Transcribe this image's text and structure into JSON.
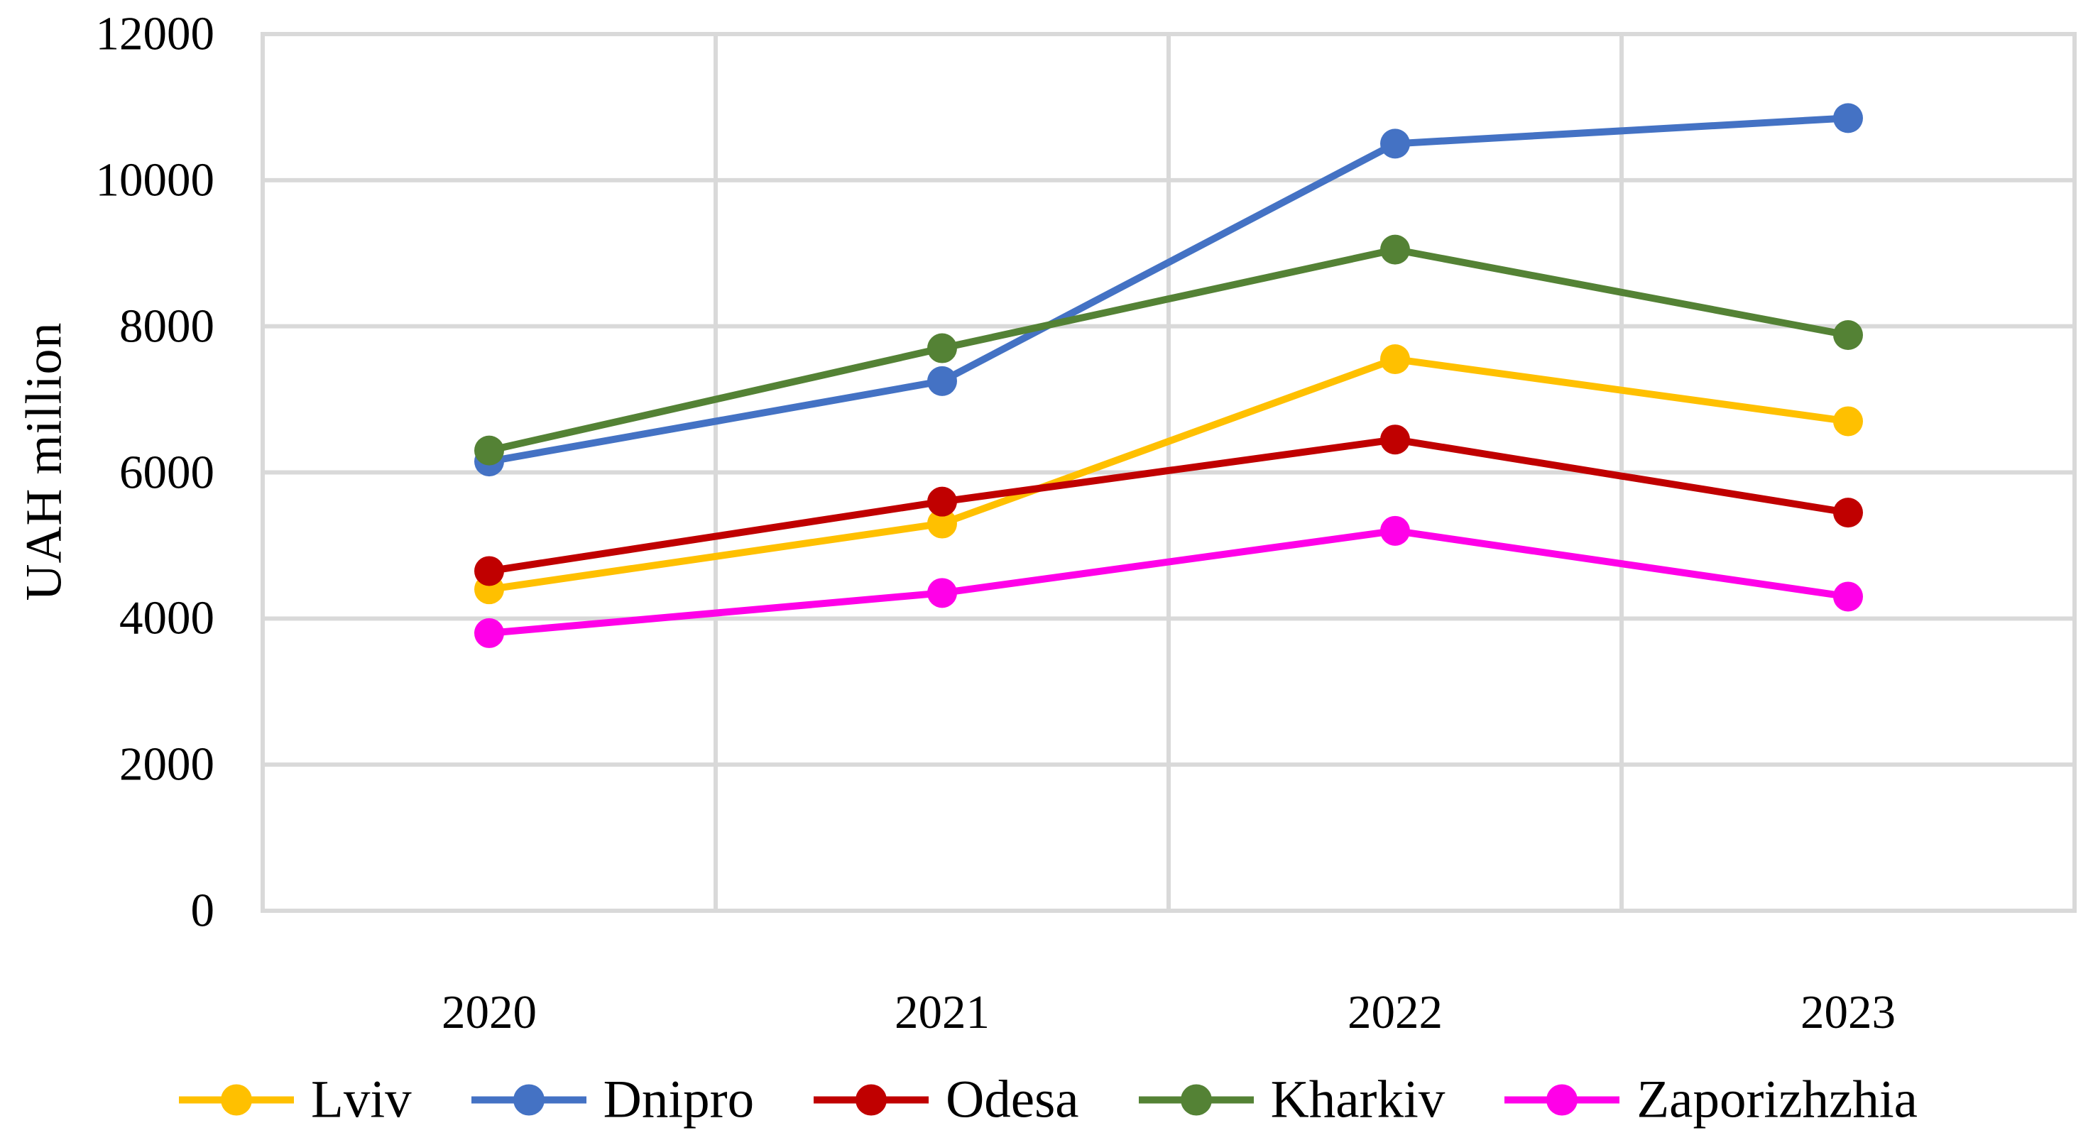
{
  "chart_data": {
    "type": "line",
    "title": "",
    "categories": [
      "2020",
      "2021",
      "2022",
      "2023"
    ],
    "series": [
      {
        "name": "Lviv",
        "color": "#FFC000",
        "values": [
          4400,
          5300,
          7550,
          6700
        ]
      },
      {
        "name": "Dnipro",
        "color": "#4472C4",
        "values": [
          6150,
          7250,
          10500,
          10850
        ]
      },
      {
        "name": "Odesa",
        "color": "#C00000",
        "values": [
          4650,
          5600,
          6450,
          5450
        ]
      },
      {
        "name": "Kharkiv",
        "color": "#548235",
        "values": [
          6300,
          7700,
          9050,
          7880
        ]
      },
      {
        "name": "Zaporizhzhia",
        "color": "#FF00E8",
        "values": [
          3800,
          4350,
          5200,
          4300
        ]
      }
    ],
    "xlabel": "",
    "ylabel": "UAH million",
    "ylim": [
      0,
      12000
    ],
    "ytick_step": 2000,
    "y_ticks": [
      "0",
      "2000",
      "4000",
      "6000",
      "8000",
      "10000",
      "12000"
    ],
    "grid": true,
    "gridline_color": "#D9D9D9",
    "legend_position": "bottom"
  }
}
